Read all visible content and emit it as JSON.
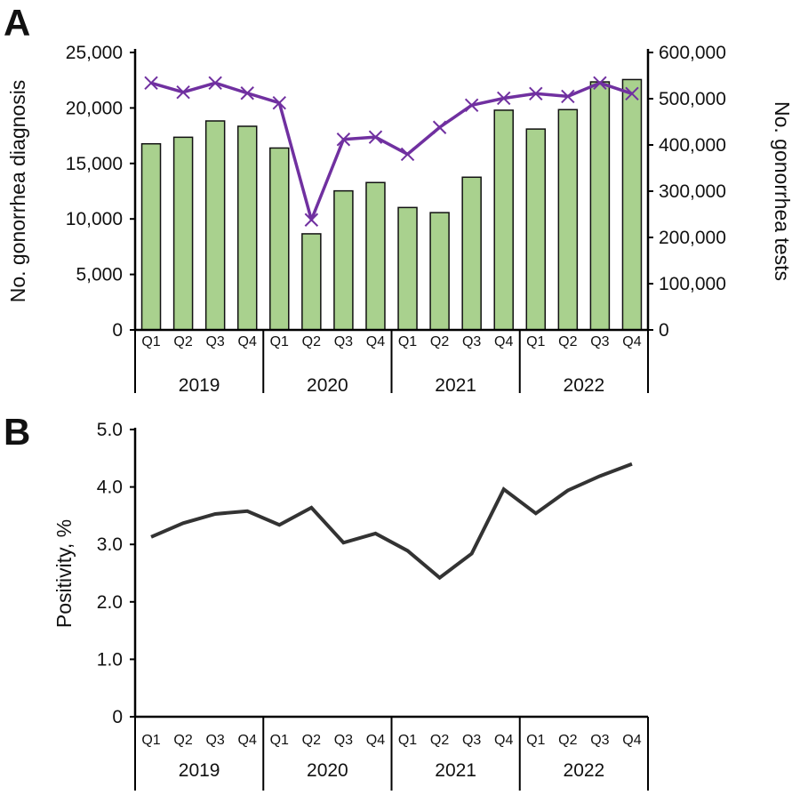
{
  "chart_data": [
    {
      "type": "bar+line",
      "panel_label": "A",
      "categories": [
        "Q1",
        "Q2",
        "Q3",
        "Q4",
        "Q1",
        "Q2",
        "Q3",
        "Q4",
        "Q1",
        "Q2",
        "Q3",
        "Q4",
        "Q1",
        "Q2",
        "Q3",
        "Q4"
      ],
      "years": [
        "2019",
        "2020",
        "2021",
        "2022"
      ],
      "ylabel": "No. gonorrhea diagnosis",
      "y2label": "No. gonorrhea tests",
      "ylim": [
        0,
        25000
      ],
      "y2lim": [
        0,
        600000
      ],
      "yticks": [
        "0",
        "5,000",
        "10,000",
        "15,000",
        "20,000",
        "25,000"
      ],
      "y2ticks": [
        "0",
        "100,000",
        "200,000",
        "300,000",
        "400,000",
        "500,000",
        "600,000"
      ],
      "series": [
        {
          "type": "bar",
          "axis": "left",
          "color": "#a9d18e",
          "values": [
            16770,
            17360,
            18830,
            18350,
            16390,
            8660,
            12530,
            13280,
            11030,
            10570,
            13760,
            19800,
            18100,
            19850,
            22350,
            22560
          ]
        },
        {
          "type": "line",
          "axis": "right",
          "color": "#7030a0",
          "marker": "x",
          "values": [
            534000,
            514000,
            534000,
            512000,
            491000,
            238000,
            412000,
            417000,
            380000,
            438000,
            486000,
            501000,
            511000,
            505000,
            534000,
            511000
          ]
        }
      ]
    },
    {
      "type": "line",
      "panel_label": "B",
      "categories": [
        "Q1",
        "Q2",
        "Q3",
        "Q4",
        "Q1",
        "Q2",
        "Q3",
        "Q4",
        "Q1",
        "Q2",
        "Q3",
        "Q4",
        "Q1",
        "Q2",
        "Q3",
        "Q4"
      ],
      "years": [
        "2019",
        "2020",
        "2021",
        "2022"
      ],
      "ylabel": "Positivity, %",
      "ylim": [
        0,
        5
      ],
      "yticks": [
        "0",
        "1.0",
        "2.0",
        "3.0",
        "4.0",
        "5.0"
      ],
      "series": [
        {
          "color": "#333333",
          "values": [
            3.13,
            3.37,
            3.53,
            3.58,
            3.34,
            3.64,
            3.03,
            3.19,
            2.89,
            2.42,
            2.84,
            3.96,
            3.54,
            3.94,
            4.19,
            4.4
          ]
        }
      ]
    }
  ]
}
